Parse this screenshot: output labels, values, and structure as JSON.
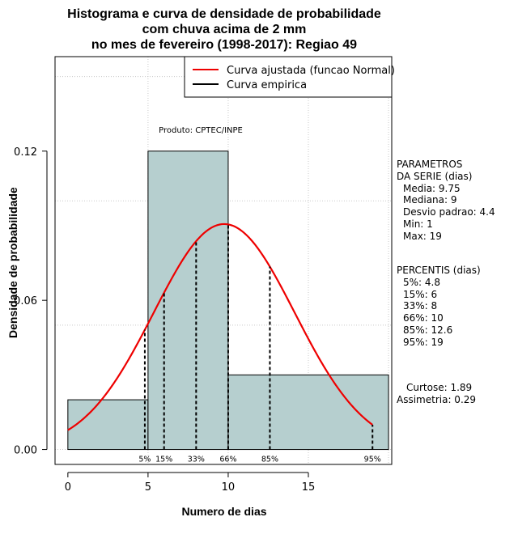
{
  "title": {
    "line1": "Histograma e curva de densidade de probabilidade",
    "line2": "com chuva acima de 2 mm",
    "line3": "no mes de fevereiro (1998-2017): Regiao 49"
  },
  "chart_data": {
    "type": "bar",
    "xlabel": "Numero de dias",
    "ylabel": "Densidade de probabilidade",
    "xlim": [
      -0.8,
      20.2
    ],
    "ylim": [
      -0.006,
      0.158
    ],
    "x_ticks": [
      0,
      5,
      10,
      15
    ],
    "y_ticks": [
      0.0,
      0.06,
      0.12
    ],
    "y_tick_labels": [
      "0.00",
      "0.06",
      "0.12"
    ],
    "histogram": {
      "bins": [
        {
          "from": 0,
          "to": 5,
          "density": 0.02
        },
        {
          "from": 5,
          "to": 10,
          "density": 0.12
        },
        {
          "from": 10,
          "to": 20,
          "density": 0.03
        }
      ],
      "fill": "#b6cfcf"
    },
    "normal_curve": {
      "name": "Curva ajustada (funcao Normal)",
      "mean": 9.75,
      "sd": 4.4,
      "from": 0,
      "to": 19,
      "color": "#ee0000"
    },
    "percentile_lines": [
      {
        "label": "5%",
        "x": 4.8
      },
      {
        "label": "15%",
        "x": 6
      },
      {
        "label": "33%",
        "x": 8
      },
      {
        "label": "66%",
        "x": 10
      },
      {
        "label": "85%",
        "x": 12.6
      },
      {
        "label": "95%",
        "x": 19
      }
    ],
    "legend": {
      "placement": "top-right",
      "entries": [
        {
          "label": "Curva ajustada (funcao Normal)",
          "color": "#ee0000"
        },
        {
          "label": "Curva empirica",
          "color": "#000000"
        }
      ]
    },
    "annotation": "Produto: CPTEC/INPE",
    "grid": true
  },
  "parameters": {
    "heading1": "PARAMETROS",
    "heading2": "DA SERIE (dias)",
    "media": "Media: 9.75",
    "mediana": "Mediana: 9",
    "desvio": "Desvio padrao: 4.4",
    "min": "Min: 1",
    "max": "Max: 19"
  },
  "percentis": {
    "heading": "PERCENTIS (dias)",
    "p5": "5%: 4.8",
    "p15": "15%: 6",
    "p33": "33%: 8",
    "p66": "66%: 10",
    "p85": "85%: 12.6",
    "p95": "95%: 19"
  },
  "shape": {
    "curtose": "Curtose: 1.89",
    "assimetria": "Assimetria: 0.29"
  }
}
